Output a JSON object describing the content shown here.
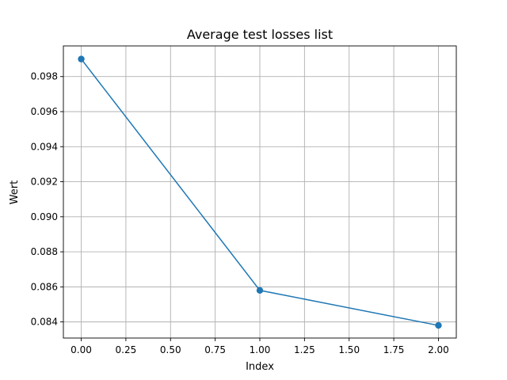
{
  "chart_data": {
    "type": "line",
    "title": "Average test losses list",
    "xlabel": "Index",
    "ylabel": "Wert",
    "x": [
      0,
      1,
      2
    ],
    "series": [
      {
        "values": [
          0.099,
          0.0858,
          0.0838
        ],
        "color": "#1f77b4",
        "marker": "circle"
      }
    ],
    "xlim": [
      -0.1,
      2.1
    ],
    "ylim": [
      0.08308,
      0.09975
    ],
    "xticks": [
      "0.00",
      "0.25",
      "0.50",
      "0.75",
      "1.00",
      "1.25",
      "1.50",
      "1.75",
      "2.00"
    ],
    "yticks": [
      "0.084",
      "0.086",
      "0.088",
      "0.090",
      "0.092",
      "0.094",
      "0.096",
      "0.098"
    ],
    "grid": true,
    "legend": "none"
  }
}
